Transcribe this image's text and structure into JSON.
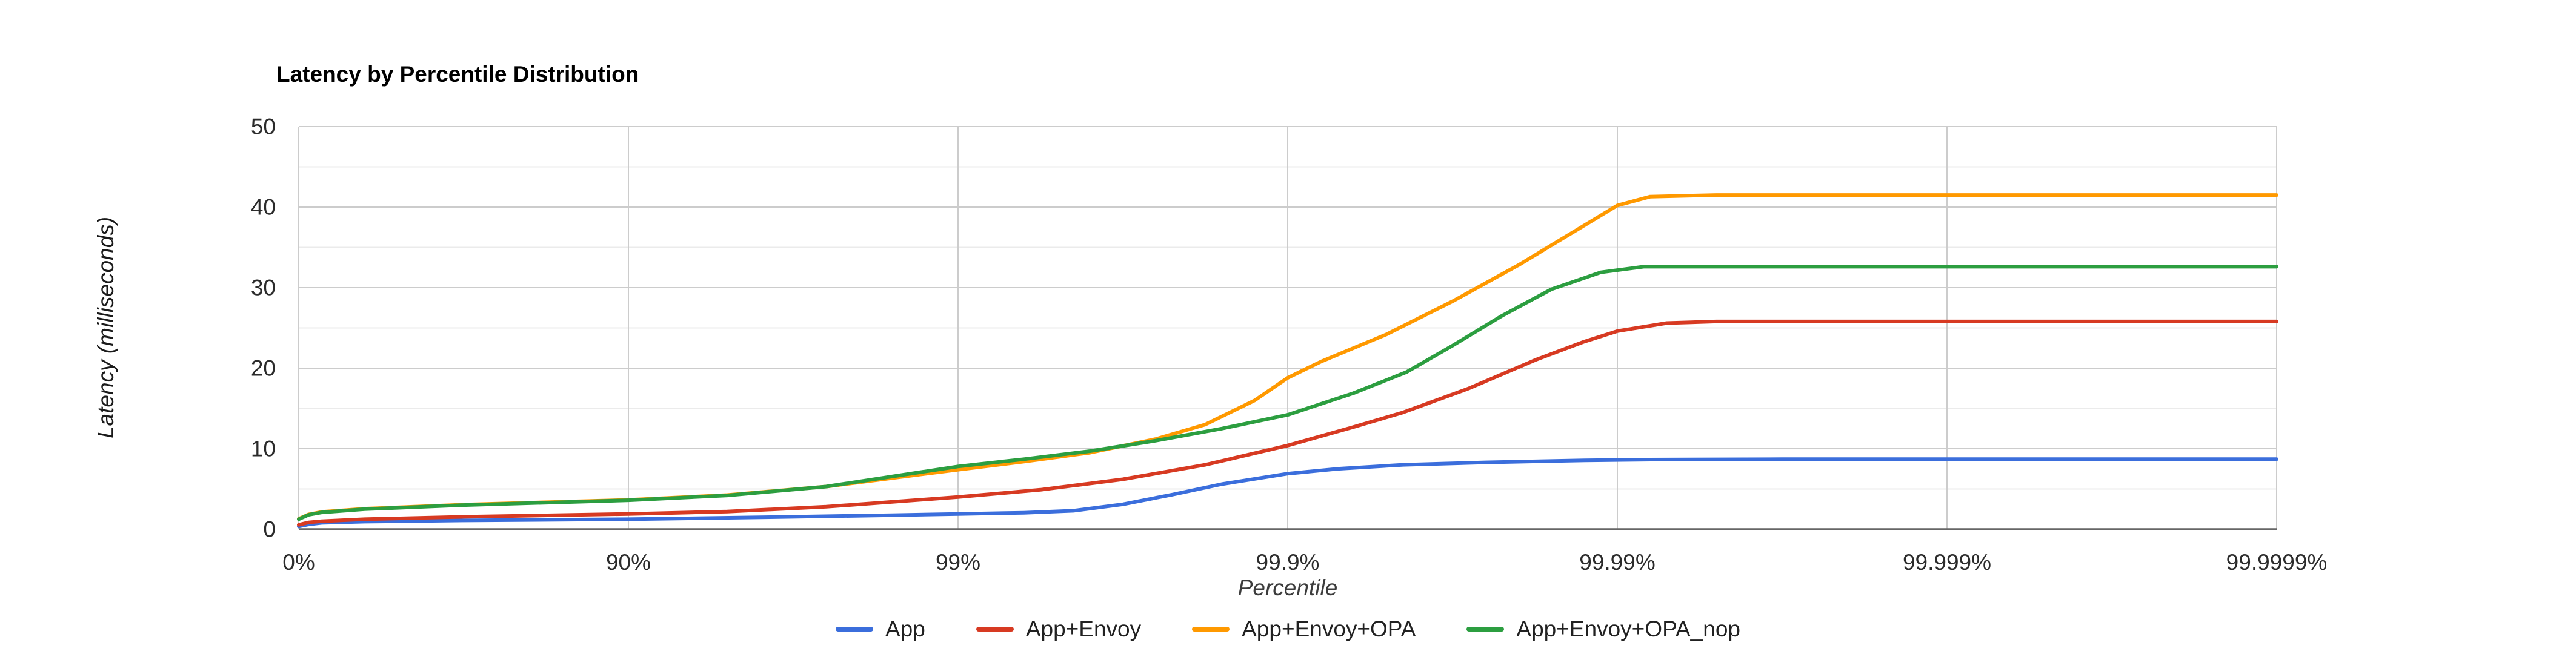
{
  "chart": {
    "title": "Latency by Percentile Distribution",
    "y_axis_title": "Latency (milliseconds)",
    "x_axis_title": "Percentile"
  },
  "chart_data": {
    "type": "line",
    "title": "Latency by Percentile Distribution",
    "xlabel": "Percentile",
    "ylabel": "Latency (milliseconds)",
    "x_axis_scale": "percentile mapped to number of nines: 0%=0, 90%=1, 99%=2, 99.9%=3, 99.99%=4, 99.999%=5, 99.9999%=6",
    "xlim": [
      0,
      6
    ],
    "ylim": [
      0,
      50
    ],
    "x_ticks": [
      {
        "label": "0%",
        "x": 0
      },
      {
        "label": "90%",
        "x": 1
      },
      {
        "label": "99%",
        "x": 2
      },
      {
        "label": "99.9%",
        "x": 3
      },
      {
        "label": "99.99%",
        "x": 4
      },
      {
        "label": "99.999%",
        "x": 5
      },
      {
        "label": "99.9999%",
        "x": 6
      }
    ],
    "y_ticks": [
      0,
      10,
      20,
      30,
      40,
      50
    ],
    "grid": {
      "major_color": "#cccccc",
      "minor_color": "#ebebeb",
      "baseline_color": "#666666",
      "minor_y_step": 5,
      "vertical_minor": false
    },
    "legend_position": "bottom",
    "series": [
      {
        "name": "App",
        "color": "#3b6edc",
        "plateau_ms": 8.7,
        "points": [
          [
            0,
            0.35
          ],
          [
            0.03,
            0.6
          ],
          [
            0.07,
            0.8
          ],
          [
            0.2,
            0.95
          ],
          [
            0.5,
            1.1
          ],
          [
            1,
            1.25
          ],
          [
            1.5,
            1.55
          ],
          [
            1.8,
            1.75
          ],
          [
            2,
            1.9
          ],
          [
            2.2,
            2.05
          ],
          [
            2.35,
            2.3
          ],
          [
            2.5,
            3.1
          ],
          [
            2.65,
            4.3
          ],
          [
            2.8,
            5.6
          ],
          [
            3,
            6.9
          ],
          [
            3.15,
            7.5
          ],
          [
            3.35,
            8.0
          ],
          [
            3.6,
            8.3
          ],
          [
            3.9,
            8.55
          ],
          [
            4.1,
            8.65
          ],
          [
            4.5,
            8.7
          ],
          [
            6,
            8.7
          ]
        ]
      },
      {
        "name": "App+Envoy",
        "color": "#d73a22",
        "plateau_ms": 25.8,
        "points": [
          [
            0,
            0.55
          ],
          [
            0.03,
            0.85
          ],
          [
            0.07,
            1.0
          ],
          [
            0.2,
            1.25
          ],
          [
            0.5,
            1.55
          ],
          [
            1,
            1.9
          ],
          [
            1.3,
            2.2
          ],
          [
            1.6,
            2.8
          ],
          [
            2,
            4.0
          ],
          [
            2.25,
            4.9
          ],
          [
            2.5,
            6.2
          ],
          [
            2.75,
            8.0
          ],
          [
            3,
            10.4
          ],
          [
            3.2,
            12.7
          ],
          [
            3.35,
            14.5
          ],
          [
            3.55,
            17.5
          ],
          [
            3.75,
            21.0
          ],
          [
            3.9,
            23.3
          ],
          [
            4.0,
            24.6
          ],
          [
            4.15,
            25.6
          ],
          [
            4.3,
            25.8
          ],
          [
            6,
            25.8
          ]
        ]
      },
      {
        "name": "App+Envoy+OPA",
        "color": "#ff9900",
        "plateau_ms": 41.5,
        "points": [
          [
            0,
            1.3
          ],
          [
            0.03,
            1.85
          ],
          [
            0.07,
            2.15
          ],
          [
            0.2,
            2.55
          ],
          [
            0.5,
            3.05
          ],
          [
            1,
            3.65
          ],
          [
            1.3,
            4.25
          ],
          [
            1.6,
            5.3
          ],
          [
            2,
            7.4
          ],
          [
            2.2,
            8.4
          ],
          [
            2.4,
            9.5
          ],
          [
            2.6,
            11.2
          ],
          [
            2.75,
            13.0
          ],
          [
            2.9,
            16.0
          ],
          [
            3,
            18.8
          ],
          [
            3.1,
            20.8
          ],
          [
            3.3,
            24.2
          ],
          [
            3.5,
            28.3
          ],
          [
            3.7,
            32.8
          ],
          [
            3.85,
            36.5
          ],
          [
            4.0,
            40.2
          ],
          [
            4.1,
            41.3
          ],
          [
            4.3,
            41.5
          ],
          [
            6,
            41.5
          ]
        ]
      },
      {
        "name": "App+Envoy+OPA_nop",
        "color": "#2c9e40",
        "plateau_ms": 32.6,
        "points": [
          [
            0,
            1.25
          ],
          [
            0.03,
            1.8
          ],
          [
            0.07,
            2.1
          ],
          [
            0.2,
            2.5
          ],
          [
            0.5,
            3.0
          ],
          [
            1,
            3.6
          ],
          [
            1.3,
            4.2
          ],
          [
            1.6,
            5.3
          ],
          [
            2,
            7.8
          ],
          [
            2.2,
            8.7
          ],
          [
            2.4,
            9.7
          ],
          [
            2.6,
            11.0
          ],
          [
            2.8,
            12.5
          ],
          [
            3,
            14.2
          ],
          [
            3.2,
            16.9
          ],
          [
            3.36,
            19.5
          ],
          [
            3.5,
            22.8
          ],
          [
            3.65,
            26.5
          ],
          [
            3.8,
            29.8
          ],
          [
            3.95,
            31.9
          ],
          [
            4.08,
            32.6
          ],
          [
            4.3,
            32.6
          ],
          [
            6,
            32.6
          ]
        ]
      }
    ]
  }
}
